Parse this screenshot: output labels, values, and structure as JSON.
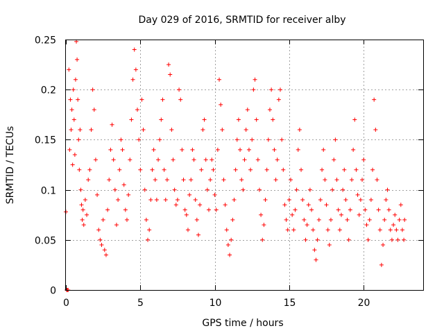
{
  "chart_data": {
    "type": "scatter",
    "title": "Day 029 of 2016, SRMTID for receiver alby",
    "xlabel": "GPS time / hours",
    "ylabel": "SRMTID / TECUs",
    "xlim": [
      0,
      24
    ],
    "ylim": [
      0,
      0.25
    ],
    "xticks": [
      0,
      5,
      10,
      15,
      20
    ],
    "xtick_labels": [
      "0",
      "5",
      "10",
      "15",
      "20"
    ],
    "yticks": [
      0,
      0.05,
      0.1,
      0.15,
      0.2,
      0.25
    ],
    "ytick_labels": [
      "0",
      "0.05",
      "0.1",
      "0.15",
      "0.2",
      "0.25"
    ],
    "grid": true,
    "marker": "+",
    "series": [
      {
        "name": "alby",
        "color": "#ff0000",
        "points": [
          [
            0.0,
            0.078
          ],
          [
            0.05,
            0.0
          ],
          [
            0.1,
            0.0
          ],
          [
            0.15,
            0.0
          ],
          [
            0.2,
            0.22
          ],
          [
            0.25,
            0.14
          ],
          [
            0.3,
            0.19
          ],
          [
            0.35,
            0.16
          ],
          [
            0.4,
            0.18
          ],
          [
            0.45,
            0.125
          ],
          [
            0.5,
            0.2
          ],
          [
            0.55,
            0.17
          ],
          [
            0.6,
            0.135
          ],
          [
            0.65,
            0.21
          ],
          [
            0.7,
            0.248
          ],
          [
            0.75,
            0.23
          ],
          [
            0.8,
            0.19
          ],
          [
            0.85,
            0.15
          ],
          [
            0.9,
            0.12
          ],
          [
            0.95,
            0.16
          ],
          [
            1.0,
            0.1
          ],
          [
            1.05,
            0.085
          ],
          [
            1.1,
            0.07
          ],
          [
            1.15,
            0.08
          ],
          [
            1.2,
            0.065
          ],
          [
            1.3,
            0.09
          ],
          [
            1.4,
            0.075
          ],
          [
            1.5,
            0.11
          ],
          [
            1.6,
            0.12
          ],
          [
            1.7,
            0.16
          ],
          [
            1.8,
            0.2
          ],
          [
            1.9,
            0.18
          ],
          [
            2.0,
            0.13
          ],
          [
            2.1,
            0.095
          ],
          [
            2.2,
            0.06
          ],
          [
            2.3,
            0.05
          ],
          [
            2.4,
            0.045
          ],
          [
            2.5,
            0.07
          ],
          [
            2.6,
            0.04
          ],
          [
            2.7,
            0.035
          ],
          [
            2.8,
            0.08
          ],
          [
            2.9,
            0.11
          ],
          [
            3.0,
            0.14
          ],
          [
            3.1,
            0.165
          ],
          [
            3.2,
            0.13
          ],
          [
            3.3,
            0.1
          ],
          [
            3.4,
            0.065
          ],
          [
            3.5,
            0.09
          ],
          [
            3.6,
            0.12
          ],
          [
            3.7,
            0.15
          ],
          [
            3.8,
            0.14
          ],
          [
            3.9,
            0.105
          ],
          [
            4.0,
            0.08
          ],
          [
            4.1,
            0.07
          ],
          [
            4.2,
            0.095
          ],
          [
            4.3,
            0.13
          ],
          [
            4.4,
            0.17
          ],
          [
            4.5,
            0.21
          ],
          [
            4.6,
            0.24
          ],
          [
            4.7,
            0.22
          ],
          [
            4.8,
            0.18
          ],
          [
            4.9,
            0.15
          ],
          [
            5.0,
            0.12
          ],
          [
            5.1,
            0.19
          ],
          [
            5.2,
            0.16
          ],
          [
            5.3,
            0.1
          ],
          [
            5.4,
            0.07
          ],
          [
            5.5,
            0.05
          ],
          [
            5.6,
            0.06
          ],
          [
            5.7,
            0.09
          ],
          [
            5.8,
            0.12
          ],
          [
            5.9,
            0.14
          ],
          [
            6.0,
            0.11
          ],
          [
            6.1,
            0.09
          ],
          [
            6.2,
            0.13
          ],
          [
            6.3,
            0.15
          ],
          [
            6.4,
            0.17
          ],
          [
            6.5,
            0.19
          ],
          [
            6.6,
            0.12
          ],
          [
            6.7,
            0.09
          ],
          [
            6.8,
            0.11
          ],
          [
            6.9,
            0.225
          ],
          [
            7.0,
            0.215
          ],
          [
            7.1,
            0.16
          ],
          [
            7.2,
            0.13
          ],
          [
            7.3,
            0.1
          ],
          [
            7.4,
            0.085
          ],
          [
            7.5,
            0.09
          ],
          [
            7.6,
            0.2
          ],
          [
            7.7,
            0.19
          ],
          [
            7.8,
            0.14
          ],
          [
            7.9,
            0.11
          ],
          [
            8.0,
            0.08
          ],
          [
            8.1,
            0.075
          ],
          [
            8.2,
            0.06
          ],
          [
            8.3,
            0.095
          ],
          [
            8.4,
            0.11
          ],
          [
            8.5,
            0.14
          ],
          [
            8.6,
            0.13
          ],
          [
            8.7,
            0.09
          ],
          [
            8.8,
            0.07
          ],
          [
            8.9,
            0.055
          ],
          [
            9.0,
            0.085
          ],
          [
            9.1,
            0.12
          ],
          [
            9.2,
            0.16
          ],
          [
            9.3,
            0.17
          ],
          [
            9.4,
            0.13
          ],
          [
            9.5,
            0.1
          ],
          [
            9.6,
            0.08
          ],
          [
            9.7,
            0.11
          ],
          [
            9.8,
            0.13
          ],
          [
            9.9,
            0.12
          ],
          [
            10.0,
            0.095
          ],
          [
            10.1,
            0.08
          ],
          [
            10.2,
            0.14
          ],
          [
            10.3,
            0.21
          ],
          [
            10.4,
            0.185
          ],
          [
            10.5,
            0.16
          ],
          [
            10.6,
            0.11
          ],
          [
            10.7,
            0.085
          ],
          [
            10.8,
            0.06
          ],
          [
            10.9,
            0.045
          ],
          [
            11.0,
            0.035
          ],
          [
            11.1,
            0.05
          ],
          [
            11.2,
            0.07
          ],
          [
            11.3,
            0.09
          ],
          [
            11.4,
            0.12
          ],
          [
            11.5,
            0.15
          ],
          [
            11.6,
            0.17
          ],
          [
            11.7,
            0.14
          ],
          [
            11.8,
            0.11
          ],
          [
            11.9,
            0.1
          ],
          [
            12.0,
            0.13
          ],
          [
            12.1,
            0.16
          ],
          [
            12.2,
            0.18
          ],
          [
            12.3,
            0.14
          ],
          [
            12.4,
            0.12
          ],
          [
            12.5,
            0.15
          ],
          [
            12.6,
            0.2
          ],
          [
            12.7,
            0.21
          ],
          [
            12.8,
            0.17
          ],
          [
            12.9,
            0.13
          ],
          [
            13.0,
            0.1
          ],
          [
            13.1,
            0.075
          ],
          [
            13.2,
            0.05
          ],
          [
            13.3,
            0.065
          ],
          [
            13.4,
            0.09
          ],
          [
            13.5,
            0.12
          ],
          [
            13.6,
            0.15
          ],
          [
            13.7,
            0.18
          ],
          [
            13.8,
            0.2
          ],
          [
            13.9,
            0.17
          ],
          [
            14.0,
            0.14
          ],
          [
            14.1,
            0.11
          ],
          [
            14.2,
            0.13
          ],
          [
            14.3,
            0.19
          ],
          [
            14.4,
            0.2
          ],
          [
            14.5,
            0.15
          ],
          [
            14.6,
            0.12
          ],
          [
            14.7,
            0.085
          ],
          [
            14.8,
            0.07
          ],
          [
            14.9,
            0.06
          ],
          [
            15.0,
            0.09
          ],
          [
            15.1,
            0.11
          ],
          [
            15.2,
            0.075
          ],
          [
            15.3,
            0.06
          ],
          [
            15.4,
            0.08
          ],
          [
            15.5,
            0.1
          ],
          [
            15.6,
            0.14
          ],
          [
            15.7,
            0.16
          ],
          [
            15.8,
            0.12
          ],
          [
            15.9,
            0.09
          ],
          [
            16.0,
            0.07
          ],
          [
            16.1,
            0.05
          ],
          [
            16.2,
            0.065
          ],
          [
            16.3,
            0.085
          ],
          [
            16.4,
            0.1
          ],
          [
            16.5,
            0.08
          ],
          [
            16.6,
            0.06
          ],
          [
            16.7,
            0.04
          ],
          [
            16.8,
            0.03
          ],
          [
            16.9,
            0.05
          ],
          [
            17.0,
            0.07
          ],
          [
            17.1,
            0.09
          ],
          [
            17.2,
            0.12
          ],
          [
            17.3,
            0.14
          ],
          [
            17.4,
            0.11
          ],
          [
            17.5,
            0.085
          ],
          [
            17.6,
            0.06
          ],
          [
            17.7,
            0.045
          ],
          [
            17.8,
            0.07
          ],
          [
            17.9,
            0.1
          ],
          [
            18.0,
            0.13
          ],
          [
            18.1,
            0.15
          ],
          [
            18.2,
            0.11
          ],
          [
            18.3,
            0.08
          ],
          [
            18.4,
            0.06
          ],
          [
            18.5,
            0.075
          ],
          [
            18.6,
            0.1
          ],
          [
            18.7,
            0.12
          ],
          [
            18.8,
            0.09
          ],
          [
            18.9,
            0.07
          ],
          [
            19.0,
            0.05
          ],
          [
            19.1,
            0.08
          ],
          [
            19.2,
            0.11
          ],
          [
            19.3,
            0.14
          ],
          [
            19.4,
            0.17
          ],
          [
            19.5,
            0.12
          ],
          [
            19.6,
            0.095
          ],
          [
            19.7,
            0.075
          ],
          [
            19.8,
            0.09
          ],
          [
            19.9,
            0.11
          ],
          [
            20.0,
            0.13
          ],
          [
            20.1,
            0.08
          ],
          [
            20.2,
            0.065
          ],
          [
            20.3,
            0.05
          ],
          [
            20.4,
            0.07
          ],
          [
            20.5,
            0.09
          ],
          [
            20.6,
            0.12
          ],
          [
            20.7,
            0.19
          ],
          [
            20.8,
            0.16
          ],
          [
            20.9,
            0.11
          ],
          [
            21.0,
            0.08
          ],
          [
            21.1,
            0.06
          ],
          [
            21.2,
            0.025
          ],
          [
            21.3,
            0.045
          ],
          [
            21.4,
            0.07
          ],
          [
            21.5,
            0.09
          ],
          [
            21.6,
            0.1
          ],
          [
            21.7,
            0.08
          ],
          [
            21.8,
            0.06
          ],
          [
            21.9,
            0.05
          ],
          [
            22.0,
            0.065
          ],
          [
            22.1,
            0.075
          ],
          [
            22.2,
            0.06
          ],
          [
            22.3,
            0.05
          ],
          [
            22.4,
            0.07
          ],
          [
            22.5,
            0.085
          ],
          [
            22.6,
            0.06
          ],
          [
            22.7,
            0.05
          ],
          [
            22.75,
            0.07
          ]
        ]
      }
    ]
  }
}
